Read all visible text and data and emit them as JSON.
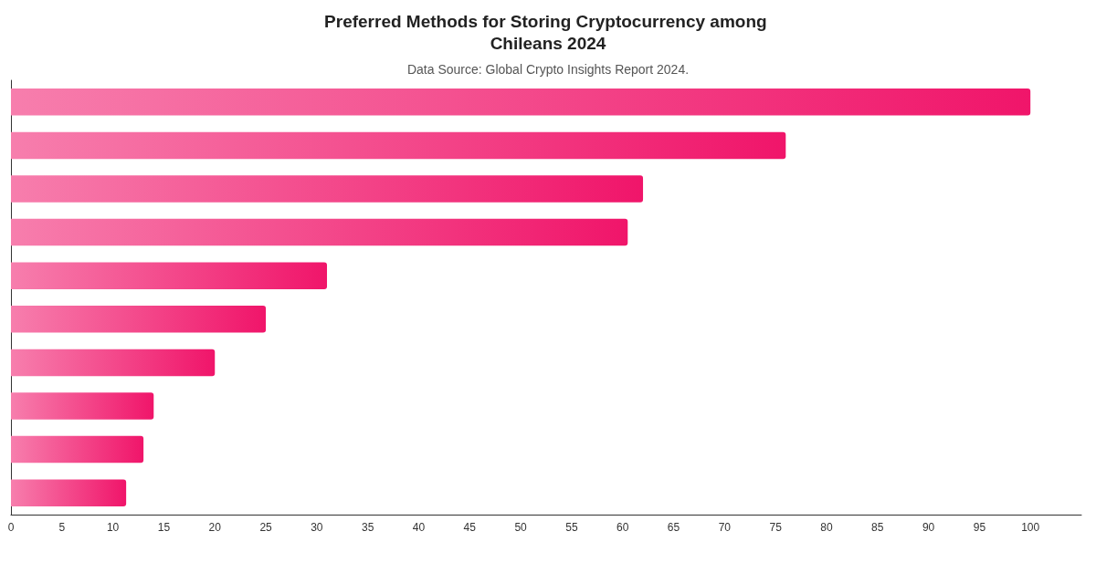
{
  "chart_data": {
    "type": "bar",
    "orientation": "horizontal",
    "title": "Preferred Methods for Storing Cryptocurrency among Chileans 2024",
    "subtitle": "Data Source: Global Crypto Insights Report 2024.",
    "categories": [
      null,
      null,
      null,
      null,
      null,
      null,
      null,
      null,
      null,
      null
    ],
    "values": [
      100,
      76,
      62,
      60.5,
      31,
      25,
      20,
      14,
      13,
      11.3
    ],
    "color": "#f0156a",
    "xlim": [
      0,
      105
    ],
    "xticks": [
      0,
      5,
      10,
      15,
      20,
      25,
      30,
      35,
      40,
      45,
      50,
      55,
      60,
      65,
      70,
      75,
      80,
      85,
      90,
      95,
      100
    ],
    "grid": false
  }
}
